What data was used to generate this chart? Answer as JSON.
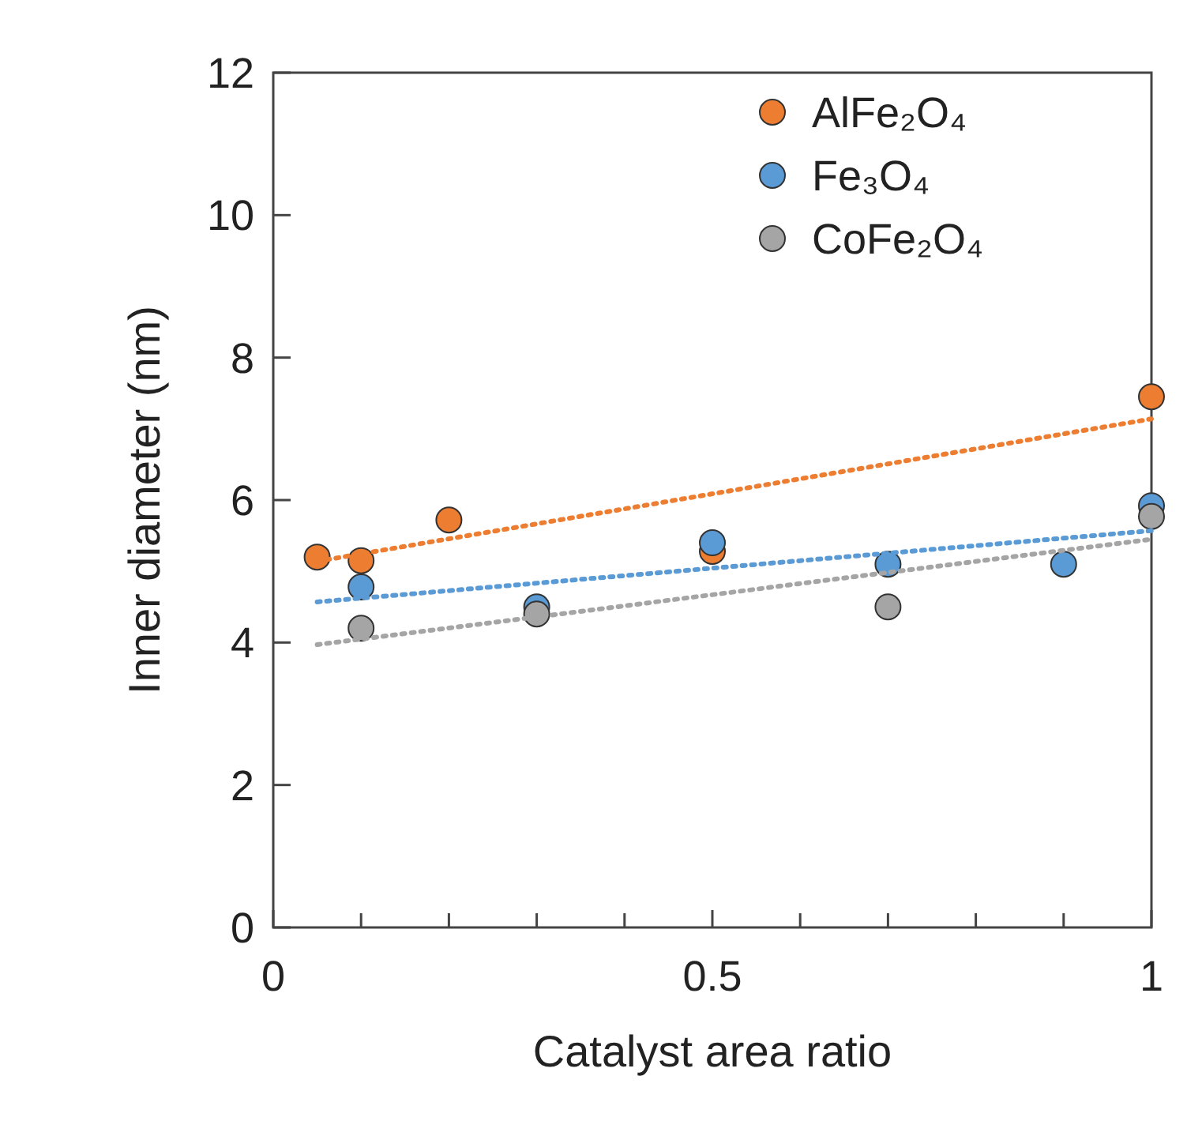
{
  "chart_data": {
    "type": "scatter",
    "xlabel": "Catalyst area ratio",
    "ylabel": "Inner diameter (nm)",
    "xlim": [
      0,
      1
    ],
    "ylim": [
      0,
      12
    ],
    "xticks": [
      0,
      {
        "value": 0.1,
        "label": null
      },
      {
        "value": 0.2,
        "label": null
      },
      {
        "value": 0.3,
        "label": null
      },
      {
        "value": 0.4,
        "label": null
      },
      0.5,
      {
        "value": 0.6,
        "label": null
      },
      {
        "value": 0.7,
        "label": null
      },
      {
        "value": 0.8,
        "label": null
      },
      {
        "value": 0.9,
        "label": null
      },
      1
    ],
    "yticks": [
      0,
      2,
      4,
      6,
      8,
      10,
      12
    ],
    "legend": "top right",
    "marker": "circle",
    "grid": false,
    "series": [
      {
        "name": "AlFe₂O₄",
        "color": "#ed7d31",
        "x": [
          0.05,
          0.1,
          0.2,
          0.5,
          1
        ],
        "values": [
          5.2,
          5.15,
          5.72,
          5.28,
          7.45
        ]
      },
      {
        "name": "Fe₃O₄",
        "color": "#5b9bd5",
        "x": [
          0.1,
          0.3,
          0.5,
          0.7,
          0.9,
          1
        ],
        "values": [
          4.78,
          4.5,
          5.4,
          5.1,
          5.1,
          5.92
        ]
      },
      {
        "name": "CoFe₂O₄",
        "color": "#a5a5a5",
        "x": [
          0.1,
          0.3,
          0.7,
          1
        ],
        "values": [
          4.2,
          4.4,
          4.5,
          5.77
        ]
      },
      {
        "type": "line",
        "color": "#ed7d31",
        "line_style": "dotted",
        "marker": "none",
        "x": [
          0.05,
          1
        ],
        "values": [
          5.14,
          7.14
        ]
      },
      {
        "type": "line",
        "color": "#5b9bd5",
        "line_style": "dotted",
        "marker": "none",
        "x": [
          0.05,
          1
        ],
        "values": [
          4.57,
          5.57
        ]
      },
      {
        "type": "line",
        "color": "#a5a5a5",
        "line_style": "dotted",
        "marker": "none",
        "x": [
          0.05,
          1
        ],
        "values": [
          3.97,
          5.45
        ]
      }
    ]
  }
}
